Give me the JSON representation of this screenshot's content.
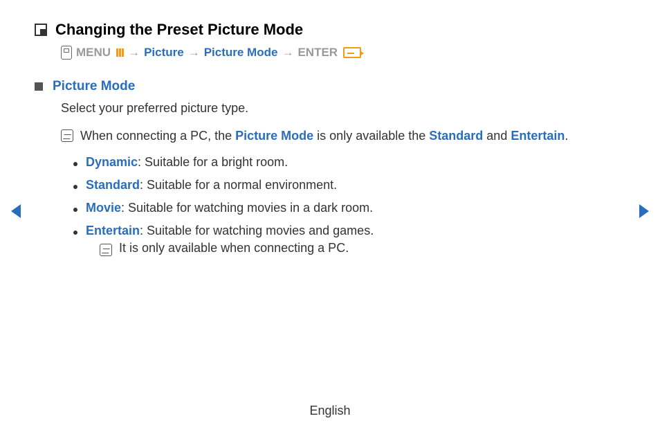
{
  "title": "Changing the Preset Picture Mode",
  "breadcrumb": {
    "menu": "MENU",
    "picture": "Picture",
    "picture_mode": "Picture Mode",
    "enter": "ENTER",
    "arrow": "→"
  },
  "section": {
    "heading": "Picture Mode",
    "intro": "Select your preferred picture type."
  },
  "note1": {
    "pre": "When connecting a PC, the ",
    "pm": "Picture Mode",
    "mid": " is only available the ",
    "std": "Standard",
    "and": " and ",
    "ent": "Entertain",
    "end": "."
  },
  "modes": {
    "dynamic_label": "Dynamic",
    "dynamic_desc": ": Suitable for a bright room.",
    "standard_label": "Standard",
    "standard_desc": ": Suitable for a normal environment.",
    "movie_label": "Movie",
    "movie_desc": ": Suitable for watching movies in a dark room.",
    "entertain_label": "Entertain",
    "entertain_desc": ": Suitable for watching movies and games.",
    "entertain_note": "It is only available when connecting a PC."
  },
  "footer_lang": "English",
  "colors": {
    "link_blue": "#2a6ebb",
    "accent_orange": "#f39c12",
    "text_gray": "#999999",
    "body_text": "#333333",
    "background": "#ffffff"
  }
}
